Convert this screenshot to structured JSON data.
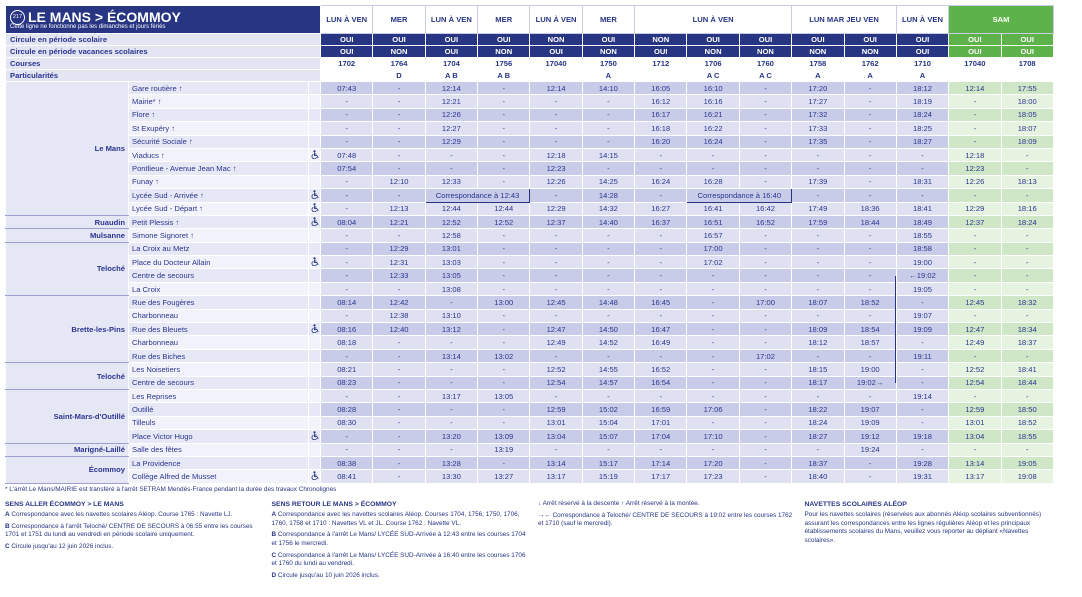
{
  "header": {
    "line": "217",
    "title": "LE MANS > ÉCOMMOY",
    "subtitle": "Cette ligne ne fonctionne pas les dimanches et jours fériés"
  },
  "table": {
    "days": [
      "LUN À VEN",
      "MER",
      "LUN À VEN",
      "MER",
      "LUN À VEN",
      "MER",
      "LUN À VEN",
      null,
      null,
      "LUN MAR JEU VEN",
      null,
      "LUN À VEN",
      "SAM",
      null
    ],
    "column_theme": [
      "blue",
      "blue",
      "blue",
      "blue",
      "blue",
      "blue",
      "blue",
      "blue",
      "blue",
      "blue",
      "blue",
      "blue",
      "green",
      "green"
    ],
    "meta": [
      {
        "label": "Circule en période scolaire",
        "values": [
          "OUI",
          "OUI",
          "OUI",
          "OUI",
          "NON",
          "OUI",
          "NON",
          "OUI",
          "OUI",
          "OUI",
          "OUI",
          "OUI",
          "OUI",
          "OUI"
        ]
      },
      {
        "label": "Circule en période vacances scolaires",
        "values": [
          "OUI",
          "NON",
          "OUI",
          "NON",
          "OUI",
          "NON",
          "OUI",
          "NON",
          "NON",
          "NON",
          "NON",
          "OUI",
          "OUI",
          "OUI"
        ]
      },
      {
        "label": "Courses",
        "values": [
          "1702",
          "1764",
          "1704",
          "1756",
          "17040",
          "1750",
          "1712",
          "1706",
          "1760",
          "1758",
          "1762",
          "1710",
          "17040",
          "1708"
        ]
      },
      {
        "label": "Particularités",
        "values": [
          null,
          "D",
          "A B",
          "A B",
          null,
          "A",
          null,
          "A C",
          "A C",
          "A",
          "A",
          "A",
          null,
          null
        ]
      }
    ],
    "groups": [
      {
        "town": "Le Mans",
        "stops": [
          {
            "name": "Gare routière ↑",
            "accessible": false,
            "times": [
              "07:43",
              "-",
              "12:14",
              "-",
              "12:14",
              "14:10",
              "16:05",
              "16:10",
              "-",
              "17:20",
              "-",
              "18:12",
              "12:14",
              "17:55"
            ]
          },
          {
            "name": "Mairie* ↑",
            "accessible": false,
            "times": [
              "-",
              "-",
              "12:21",
              "-",
              "-",
              "-",
              "16:12",
              "16:16",
              "-",
              "17:27",
              "-",
              "18:19",
              "-",
              "18:00"
            ]
          },
          {
            "name": "Flore ↑",
            "accessible": false,
            "times": [
              "-",
              "-",
              "12:26",
              "-",
              "-",
              "-",
              "16:17",
              "16:21",
              "-",
              "17:32",
              "-",
              "18:24",
              "-",
              "18:05"
            ]
          },
          {
            "name": "St Exupéry ↑",
            "accessible": false,
            "times": [
              "-",
              "-",
              "12:27",
              "-",
              "-",
              "-",
              "16:18",
              "16:22",
              "-",
              "17:33",
              "-",
              "18:25",
              "-",
              "18:07"
            ]
          },
          {
            "name": "Sécurité Sociale ↑",
            "accessible": false,
            "times": [
              "-",
              "-",
              "12:29",
              "-",
              "-",
              "-",
              "16:20",
              "16:24",
              "-",
              "17:35",
              "-",
              "18:27",
              "-",
              "18:09"
            ]
          },
          {
            "name": "Viaducs ↑",
            "accessible": true,
            "times": [
              "07:48",
              "-",
              "-",
              "-",
              "12:18",
              "14:15",
              "-",
              "-",
              "-",
              "-",
              "-",
              "-",
              "12:18",
              "-"
            ]
          },
          {
            "name": "Pontlieue - Avenue Jean Mac ↑",
            "accessible": false,
            "times": [
              "07:54",
              "-",
              "-",
              "-",
              "12:23",
              "-",
              "-",
              "-",
              "-",
              "-",
              "-",
              "-",
              "12:23",
              "-"
            ]
          },
          {
            "name": "Funay ↑",
            "accessible": false,
            "times": [
              "-",
              "12:10",
              "12:33",
              "-",
              "12:26",
              "14:25",
              "16:24",
              "16:28",
              "-",
              "17:39",
              "-",
              "18:31",
              "12:26",
              "18:13"
            ]
          },
          {
            "name": "Lycée Sud - Arrivée ↑",
            "accessible": true,
            "times": [
              "-",
              "-",
              "Correspondance à 12:43",
              null,
              "-",
              "14:28",
              "-",
              "Correspondance à 16:40",
              null,
              "-",
              "-",
              "-",
              "-",
              "-"
            ]
          },
          {
            "name": "Lycée Sud - Départ ↑",
            "accessible": true,
            "times": [
              "-",
              "12:13",
              "12:44",
              "12:44",
              "12:29",
              "14:32",
              "16:27",
              "16:41",
              "16:42",
              "17:49",
              "18:36",
              "18:41",
              "12:29",
              "18:16"
            ]
          }
        ]
      },
      {
        "town": "Ruaudin",
        "stops": [
          {
            "name": "Petit Plessis ↑",
            "accessible": true,
            "times": [
              "08:04",
              "12:21",
              "12:52",
              "12:52",
              "12:37",
              "14:40",
              "16:37",
              "16:51",
              "16:52",
              "17:59",
              "18:44",
              "18:49",
              "12:37",
              "18:24"
            ]
          }
        ]
      },
      {
        "town": "Mulsanne",
        "stops": [
          {
            "name": "Simone Signoret ↑",
            "accessible": false,
            "times": [
              "-",
              "-",
              "12:58",
              "-",
              "-",
              "-",
              "-",
              "16:57",
              "-",
              "-",
              "-",
              "18:55",
              "-",
              "-"
            ]
          }
        ]
      },
      {
        "town": "Teloché",
        "stops": [
          {
            "name": "La Croix au Metz",
            "accessible": false,
            "times": [
              "-",
              "12:29",
              "13:01",
              "-",
              "-",
              "-",
              "-",
              "17:00",
              "-",
              "-",
              "-",
              "18:58",
              "-",
              "-"
            ]
          },
          {
            "name": "Place du Docteur Allain",
            "accessible": true,
            "times": [
              "-",
              "12:31",
              "13:03",
              "-",
              "-",
              "-",
              "-",
              "17:02",
              "-",
              "-",
              "-",
              "19:00",
              "-",
              "-"
            ]
          },
          {
            "name": "Centre de secours",
            "accessible": false,
            "times": [
              "-",
              "12:33",
              "13:05",
              "-",
              "-",
              "-",
              "-",
              "-",
              "-",
              "-",
              "-",
              "←19:02",
              "-",
              "-"
            ]
          },
          {
            "name": "La Croix",
            "accessible": false,
            "times": [
              "-",
              "-",
              "13:08",
              "-",
              "-",
              "-",
              "-",
              "-",
              "-",
              "-",
              "-",
              "19:05",
              "-",
              "-"
            ]
          }
        ]
      },
      {
        "town": "Brette-les-Pins",
        "stops": [
          {
            "name": "Rue des Fougères",
            "accessible": false,
            "times": [
              "08:14",
              "12:42",
              "-",
              "13:00",
              "12:45",
              "14:48",
              "16:45",
              "-",
              "17:00",
              "18:07",
              "18:52",
              "-",
              "12:45",
              "18:32"
            ]
          },
          {
            "name": "Charbonneau",
            "accessible": false,
            "times": [
              "-",
              "12:38",
              "13:10",
              "-",
              "-",
              "-",
              "-",
              "-",
              "-",
              "-",
              "-",
              "19:07",
              "-",
              "-"
            ]
          },
          {
            "name": "Rue des Bleuets",
            "accessible": true,
            "times": [
              "08:16",
              "12:40",
              "13:12",
              "-",
              "12:47",
              "14:50",
              "16:47",
              "-",
              "-",
              "18:09",
              "18:54",
              "19:09",
              "12:47",
              "18:34"
            ]
          },
          {
            "name": "Charbonneau",
            "accessible": false,
            "times": [
              "08:18",
              "-",
              "-",
              "-",
              "12:49",
              "14:52",
              "16:49",
              "-",
              "-",
              "18:12",
              "18:57",
              "-",
              "12:49",
              "18:37"
            ]
          },
          {
            "name": "Rue des Biches",
            "accessible": false,
            "times": [
              "-",
              "-",
              "13:14",
              "13:02",
              "-",
              "-",
              "-",
              "-",
              "17:02",
              "-",
              "-",
              "19:11",
              "-",
              "-"
            ]
          }
        ]
      },
      {
        "town": "Teloché",
        "stops": [
          {
            "name": "Les Noisetiers",
            "accessible": false,
            "times": [
              "08:21",
              "-",
              "-",
              "-",
              "12:52",
              "14:55",
              "16:52",
              "-",
              "-",
              "18:15",
              "19:00",
              "-",
              "12:52",
              "18:41"
            ]
          },
          {
            "name": "Centre de secours",
            "accessible": false,
            "times": [
              "08:23",
              "-",
              "-",
              "-",
              "12:54",
              "14:57",
              "16:54",
              "-",
              "-",
              "18:17",
              "19:02→",
              "-",
              "12:54",
              "18:44"
            ]
          }
        ]
      },
      {
        "town": "Saint-Mars-d'Outillé",
        "stops": [
          {
            "name": "Les Reprises",
            "accessible": false,
            "times": [
              "-",
              "-",
              "13:17",
              "13:05",
              "-",
              "-",
              "-",
              "-",
              "-",
              "-",
              "-",
              "19:14",
              "-",
              "-"
            ]
          },
          {
            "name": "Outillé",
            "accessible": false,
            "times": [
              "08:28",
              "-",
              "-",
              "-",
              "12:59",
              "15:02",
              "16:59",
              "17:06",
              "-",
              "18:22",
              "19:07",
              "-",
              "12:59",
              "18:50"
            ]
          },
          {
            "name": "Tilleuls",
            "accessible": false,
            "times": [
              "08:30",
              "-",
              "-",
              "-",
              "13:01",
              "15:04",
              "17:01",
              "-",
              "-",
              "18:24",
              "19:09",
              "-",
              "13:01",
              "18:52"
            ]
          },
          {
            "name": "Place Victor Hugo",
            "accessible": true,
            "times": [
              "-",
              "-",
              "13:20",
              "13:09",
              "13:04",
              "15:07",
              "17:04",
              "17:10",
              "-",
              "18:27",
              "19:12",
              "19:18",
              "13:04",
              "18:55"
            ]
          }
        ]
      },
      {
        "town": "Marigné-Laillé",
        "stops": [
          {
            "name": "Salle des fêtes",
            "accessible": false,
            "times": [
              "-",
              "-",
              "-",
              "13:19",
              "-",
              "-",
              "-",
              "-",
              "-",
              "-",
              "19:24",
              "-",
              "-",
              "-"
            ]
          }
        ]
      },
      {
        "town": "Écommoy",
        "stops": [
          {
            "name": "La Providence",
            "accessible": false,
            "times": [
              "08:38",
              "-",
              "13:28",
              "-",
              "13:14",
              "15:17",
              "17:14",
              "17:20",
              "-",
              "18:37",
              "-",
              "19:28",
              "13:14",
              "19:05"
            ]
          },
          {
            "name": "Collège Alfred de Musset",
            "accessible": true,
            "times": [
              "08:41",
              "-",
              "13:30",
              "13:27",
              "13:17",
              "15:19",
              "17:17",
              "17:23",
              "-",
              "18:40",
              "-",
              "19:31",
              "13:17",
              "19:08"
            ]
          }
        ]
      }
    ]
  },
  "footer": {
    "note": "* L'arrêt Le Mans/MAIRIE est transféré à l'arrêt SETRAM Mendès-France pendant la durée des travaux Chronolignes",
    "columns": [
      {
        "title": "SENS ALLER ÉCOMMOY > LE MANS",
        "items": [
          {
            "key": "A",
            "text": "Correspondance avec les navettes scolaires Aléop. Course 1765 : Navette LJ."
          },
          {
            "key": "B",
            "text": "Correspondance à l'arrêt Teloché/ CENTRE DE SECOURS à 06:55 entre les courses 1701 et 1751 du lundi au vendredi en période scolaire uniquement."
          },
          {
            "key": "C",
            "text": "Circule jusqu'au 12 juin 2026 inclus."
          }
        ]
      },
      {
        "title": "SENS RETOUR LE MANS > ÉCOMMOY",
        "items": [
          {
            "key": "A",
            "text": "Correspondance avec les navettes scolaires Aléop. Courses 1704, 1756, 1750, 1706, 1760, 1758 et 1710 : Navettes VL et JL. Course 1762 : Navette VL."
          },
          {
            "key": "B",
            "text": "Correspondance à l'arrêt Le Mans/ LYCÉE SUD-Arrivée à 12:43 entre les courses 1704 et 1756 le mercredi."
          },
          {
            "key": "C",
            "text": "Correspondance à l'arrêt Le Mans/ LYCÉE SUD-Arrivée à 16:40 entre les courses 1706 et 1760 du lundi au vendredi."
          },
          {
            "key": "D",
            "text": "Circule jusqu'au 10 juin 2026 inclus."
          }
        ]
      },
      {
        "title": null,
        "items": [
          {
            "key": "↓",
            "text": "Arrêt réservé à la descente  ↑ Arrêt réservé à la montée."
          },
          {
            "key": "→←",
            "text": "Correspondance à Teloché/ CENTRE DE SECOURS à 19:02 entre les courses 1762 et 1710 (sauf le mercredi)."
          }
        ]
      },
      {
        "title": "NAVETTES SCOLAIRES ALÉOP",
        "items": [
          {
            "key": null,
            "text": "Pour les navettes scolaires (réservées aux abonnés Aléop scolaires subventionnés) assurant les correspondances entre les lignes régulières Aléop et les principaux établissements scolaires du Mans, veuillez vous reporter au dépliant «Navettes scolaires»."
          }
        ]
      }
    ]
  }
}
